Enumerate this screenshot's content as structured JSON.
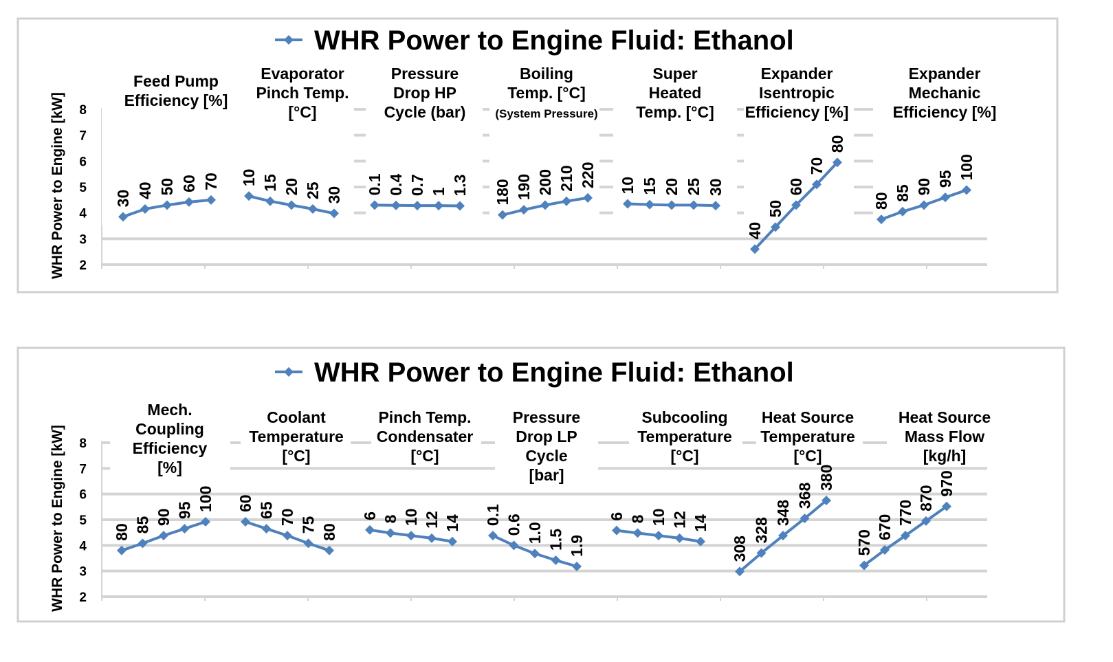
{
  "chart_data": [
    {
      "type": "line",
      "title": "WHR Power to Engine Fluid: Ethanol",
      "legend": "top-center",
      "legend_marker_color": "#4f81bd",
      "series_color": "#4f81bd",
      "ylabel": "WHR Power to Engine [kW]",
      "ylim": [
        2,
        8
      ],
      "yticks": [
        "2",
        "3",
        "4",
        "5",
        "6",
        "7",
        "8"
      ],
      "grid": true,
      "groups": [
        {
          "title": [
            "Feed Pump",
            "Efficiency [%]"
          ],
          "labels": [
            "30",
            "40",
            "50",
            "60",
            "70"
          ],
          "values": [
            3.85,
            4.15,
            4.3,
            4.42,
            4.5
          ]
        },
        {
          "title": [
            "Evaporator",
            "Pinch Temp.",
            "[°C]"
          ],
          "labels": [
            "10",
            "15",
            "20",
            "25",
            "30"
          ],
          "values": [
            4.65,
            4.45,
            4.3,
            4.15,
            3.98
          ]
        },
        {
          "title": [
            "Pressure",
            "Drop HP",
            "Cycle (bar)"
          ],
          "labels": [
            "0.1",
            "0.4",
            "0.7",
            "1",
            "1.3"
          ],
          "values": [
            4.3,
            4.29,
            4.28,
            4.28,
            4.27
          ]
        },
        {
          "title": [
            "Boiling",
            "Temp. [°C]",
            "(System Pressure)"
          ],
          "labels": [
            "180",
            "190",
            "200",
            "210",
            "220"
          ],
          "values": [
            3.92,
            4.12,
            4.3,
            4.45,
            4.58
          ]
        },
        {
          "title": [
            "Super",
            "Heated",
            "Temp. [°C]"
          ],
          "labels": [
            "10",
            "15",
            "20",
            "25",
            "30"
          ],
          "values": [
            4.35,
            4.32,
            4.3,
            4.3,
            4.28
          ]
        },
        {
          "title": [
            "Expander",
            "Isentropic",
            "Efficiency [%]"
          ],
          "labels": [
            "40",
            "50",
            "60",
            "70",
            "80"
          ],
          "values": [
            2.6,
            3.45,
            4.3,
            5.1,
            5.95
          ]
        },
        {
          "title": [
            "Expander",
            "Mechanic",
            "Efficiency [%]"
          ],
          "labels": [
            "80",
            "85",
            "90",
            "95",
            "100"
          ],
          "values": [
            3.75,
            4.05,
            4.3,
            4.6,
            4.88
          ]
        }
      ]
    },
    {
      "type": "line",
      "title": "WHR Power to Engine Fluid: Ethanol",
      "legend": "top-center",
      "legend_marker_color": "#4f81bd",
      "series_color": "#4f81bd",
      "ylabel": "WHR Power to Engine [kW]",
      "ylim": [
        2,
        8
      ],
      "yticks": [
        "2",
        "3",
        "4",
        "5",
        "6",
        "7",
        "8"
      ],
      "grid": true,
      "groups": [
        {
          "title": [
            "Mech.",
            "Coupling",
            "Efficiency",
            "[%]"
          ],
          "labels": [
            "80",
            "85",
            "90",
            "95",
            "100"
          ],
          "values": [
            3.8,
            4.08,
            4.38,
            4.65,
            4.92
          ]
        },
        {
          "title": [
            "Coolant",
            "Temperature",
            "[°C]"
          ],
          "labels": [
            "60",
            "65",
            "70",
            "75",
            "80"
          ],
          "values": [
            4.92,
            4.65,
            4.38,
            4.08,
            3.8
          ]
        },
        {
          "title": [
            "Pinch Temp.",
            "Condensater",
            "[°C]"
          ],
          "labels": [
            "6",
            "8",
            "10",
            "12",
            "14"
          ],
          "values": [
            4.6,
            4.48,
            4.38,
            4.28,
            4.15
          ]
        },
        {
          "title": [
            "Pressure",
            "Drop LP",
            "Cycle",
            "[bar]"
          ],
          "labels": [
            "0.1",
            "0.6",
            "1.0",
            "1.5",
            "1.9"
          ],
          "values": [
            4.38,
            4.0,
            3.68,
            3.42,
            3.18
          ]
        },
        {
          "title": [
            "Subcooling",
            "Temperature",
            "[°C]"
          ],
          "labels": [
            "6",
            "8",
            "10",
            "12",
            "14"
          ],
          "values": [
            4.58,
            4.48,
            4.38,
            4.28,
            4.15
          ]
        },
        {
          "title": [
            "Heat Source",
            "Temperature",
            "[°C]"
          ],
          "labels": [
            "308",
            "328",
            "348",
            "368",
            "380"
          ],
          "values": [
            2.98,
            3.7,
            4.38,
            5.05,
            5.75
          ]
        },
        {
          "title": [
            "Heat Source",
            "Mass Flow",
            "[kg/h]"
          ],
          "labels": [
            "570",
            "670",
            "770",
            "870",
            "970"
          ],
          "values": [
            3.22,
            3.82,
            4.38,
            4.95,
            5.52
          ]
        }
      ]
    }
  ]
}
